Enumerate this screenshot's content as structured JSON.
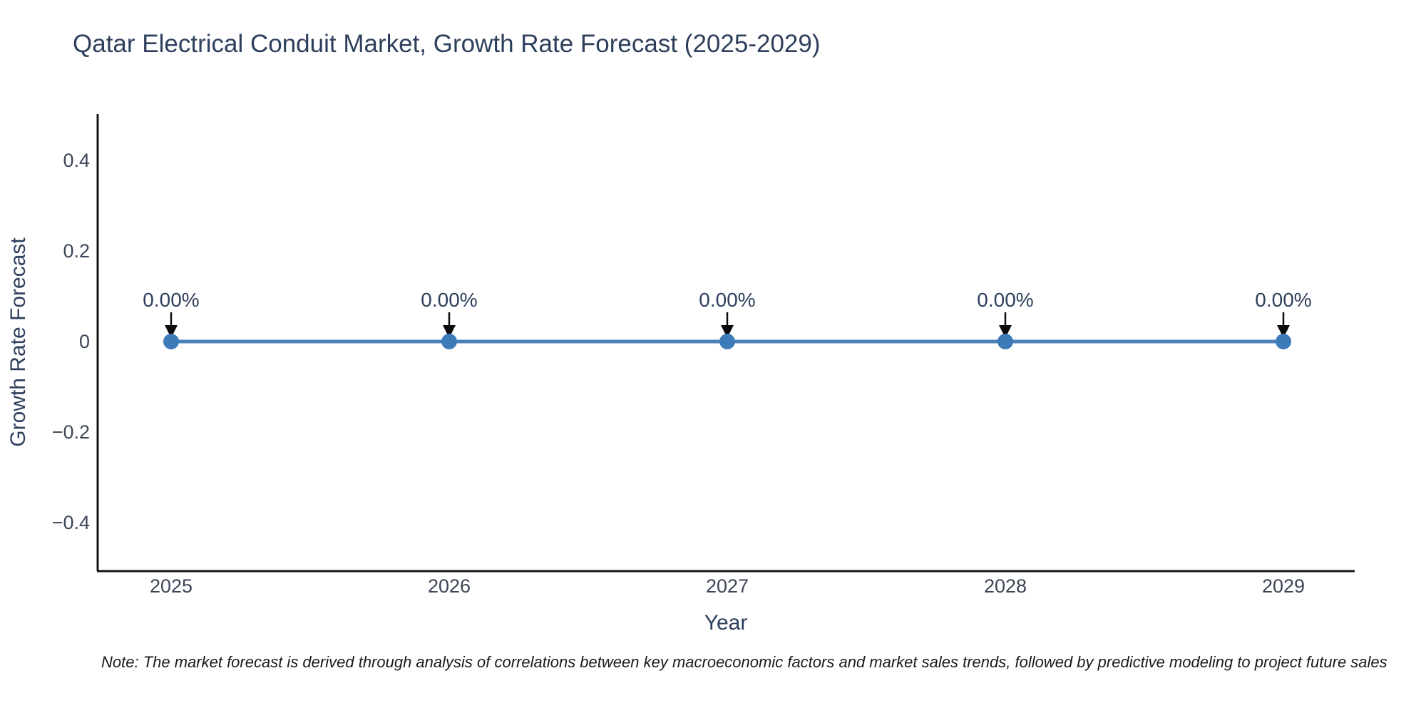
{
  "note": {
    "text": "Note: The market forecast is derived through analysis of correlations between key macroeconomic factors and market sales trends, followed by predictive modeling to project future sales"
  },
  "chart_data": {
    "type": "line",
    "title": "Qatar Electrical Conduit Market, Growth Rate Forecast (2025-2029)",
    "xlabel": "Year",
    "ylabel": "Growth Rate Forecast",
    "categories": [
      "2025",
      "2026",
      "2027",
      "2028",
      "2029"
    ],
    "values": [
      0,
      0,
      0,
      0,
      0
    ],
    "point_labels": [
      "0.00%",
      "0.00%",
      "0.00%",
      "0.00%",
      "0.00%"
    ],
    "ylim": [
      -0.5,
      0.5
    ],
    "yticks": [
      0.4,
      0.2,
      0,
      -0.2,
      -0.4
    ],
    "ytick_labels": [
      "0.4",
      "0.2",
      "0",
      "−0.2",
      "−0.4"
    ],
    "grid": false,
    "legend": false,
    "colors": {
      "line": "#4a82b8",
      "marker": "#3d7ab8",
      "arrow": "#0b0b0b",
      "axis": "#161616",
      "text": "#2e3f5c",
      "tick_text": "#3c4556"
    }
  }
}
